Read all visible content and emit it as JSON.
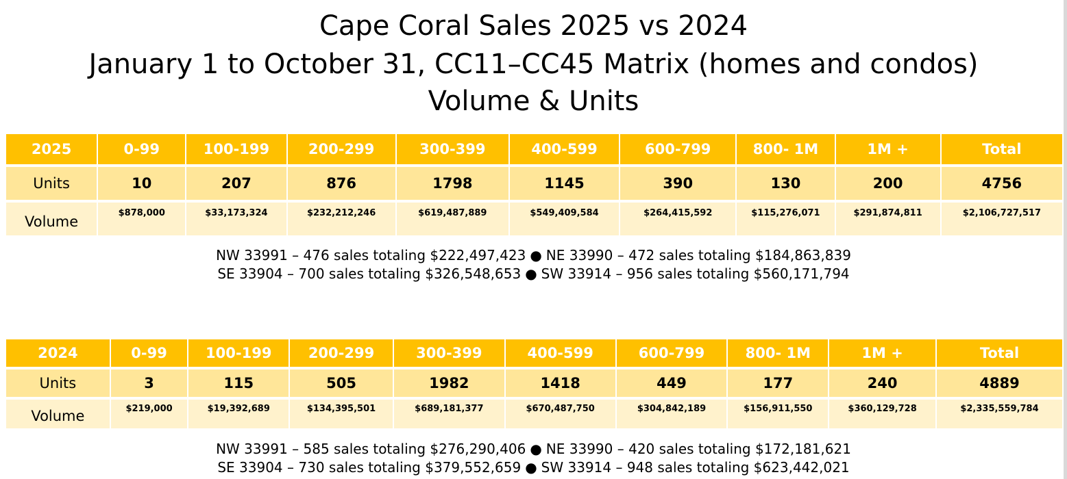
{
  "title": {
    "line1": "Cape Coral Sales  2025 vs 2024",
    "line2": "January 1 to October 31, CC11–CC45 Matrix (homes and condos)",
    "line3": "Volume & Units"
  },
  "table2025": {
    "headers": [
      "2025",
      "0-99",
      "100-199",
      "200-299",
      "300-399",
      "400-599",
      "600-799",
      "800- 1M",
      "1M +",
      "Total"
    ],
    "units": [
      "Units",
      "10",
      "207",
      "876",
      "1798",
      "1145",
      "390",
      "130",
      "200",
      "4756"
    ],
    "volume": [
      "Volume",
      "$878,000",
      "$33,173,324",
      "$232,212,246",
      "$619,487,889",
      "$549,409,584",
      "$264,415,592",
      "$115,276,071",
      "$291,874,811",
      "$2,106,727,517"
    ]
  },
  "zips2025": {
    "row1_left": "NW 33991 – 476 sales totaling $222,497,423",
    "row1_right": "NE 33990 – 472 sales totaling $184,863,839",
    "row2_left": "SE 33904 – 700 sales totaling $326,548,653",
    "row2_right": "SW 33914 – 956 sales totaling $560,171,794",
    "bullet": "●"
  },
  "table2024": {
    "headers": [
      "2024",
      "0-99",
      "100-199",
      "200-299",
      "300-399",
      "400-599",
      "600-799",
      "800- 1M",
      "1M +",
      "Total"
    ],
    "units": [
      "Units",
      "3",
      "115",
      "505",
      "1982",
      "1418",
      "449",
      "177",
      "240",
      "4889"
    ],
    "volume": [
      "Volume",
      "$219,000",
      "$19,392,689",
      "$134,395,501",
      "$689,181,377",
      "$670,487,750",
      "$304,842,189",
      "$156,911,550",
      "$360,129,728",
      "$2,335,559,784"
    ]
  },
  "zips2024": {
    "row1_left": "NW 33991 – 585 sales totaling $276,290,406",
    "row1_right": "NE 33990 – 420 sales totaling $172,181,621",
    "row2_left": "SE 33904 – 730 sales totaling $379,552,659",
    "row2_right": "SW 33914 – 948 sales totaling $623,442,021",
    "bullet": "●"
  },
  "colors": {
    "header_bg": "#FFC000",
    "units_bg": "#FFE699",
    "volume_bg": "#FFF2CC"
  }
}
